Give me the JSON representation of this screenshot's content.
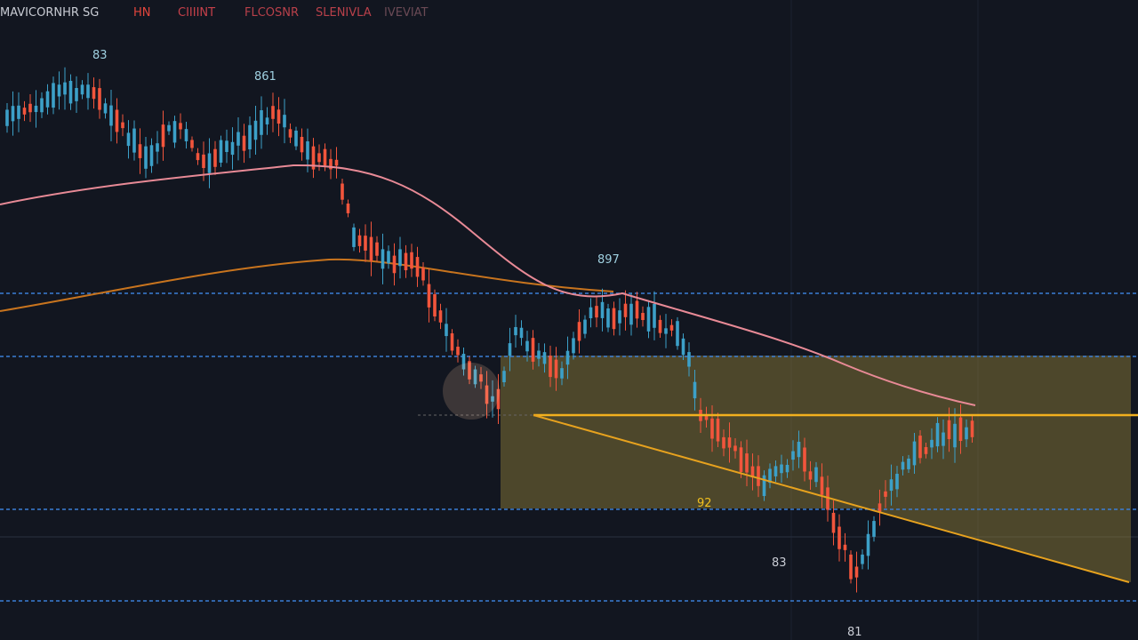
{
  "header": {
    "items": [
      "MAVICORNHR SG",
      "HN",
      "CIIIINT",
      "FLCOSNR",
      "SLENIVLA",
      "IVEVIAT"
    ]
  },
  "annotations": [
    "83",
    "861",
    "897",
    "92",
    "83",
    "81"
  ]
}
